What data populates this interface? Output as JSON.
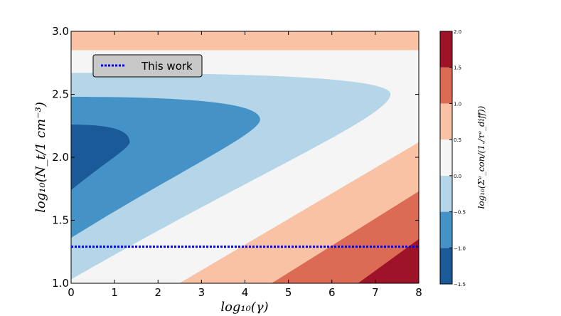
{
  "chart_data": {
    "type": "contourf",
    "xlabel": "log₁₀(γ)",
    "ylabel": "log₁₀(N_t/1 cm⁻³)",
    "xlim": [
      0,
      8
    ],
    "ylim": [
      1.0,
      3.0
    ],
    "x_ticks": [
      "0",
      "1",
      "2",
      "3",
      "4",
      "5",
      "6",
      "7",
      "8"
    ],
    "y_ticks": [
      "1.0",
      "1.5",
      "2.0",
      "2.5",
      "3.0"
    ],
    "colorbar": {
      "label": "log₁₀(Σᵉ_con/(1./τᵉ_diff))",
      "ticks": [
        "−1.5",
        "−1.0",
        "−0.5",
        "0.0",
        "0.5",
        "1.0",
        "1.5",
        "2.0"
      ],
      "levels": [
        -1.5,
        -1.0,
        -0.5,
        0.0,
        0.5,
        1.0,
        1.5,
        2.0
      ],
      "colors": [
        "#1b5a98",
        "#4593c6",
        "#b5d6e9",
        "#f5f5f5",
        "#f9c2a4",
        "#dc6b55",
        "#9e1327"
      ]
    },
    "legend": {
      "placement": "top-left",
      "entries": [
        {
          "label": "This work",
          "color": "#0000ff",
          "linestyle": "dotted"
        }
      ]
    },
    "this_work_line": {
      "y": 1.29
    },
    "contour_boundaries": {
      "level_-1.0": {
        "tip_x": 1.35,
        "tip_y": 2.12,
        "left_top_y": 2.26,
        "left_bottom_y": 1.74
      },
      "level_-0.5": {
        "tip_x": 4.35,
        "tip_y": 2.3,
        "left_top_y": 2.48,
        "left_bottom_y": 1.36
      },
      "level_0.0": {
        "tip_x": 7.35,
        "tip_y": 2.5,
        "left_top_y": 2.67,
        "left_bottom_y": 1.03
      },
      "level_0.5": {
        "upper_y": 2.85,
        "lower_from_x": 2.0,
        "lower_to": [
          8,
          2.12
        ]
      },
      "level_1.0": {
        "from_x": 4.15,
        "to": [
          8,
          1.73
        ]
      },
      "level_1.5": {
        "from_x": 6.2,
        "to": [
          8,
          1.35
        ]
      }
    }
  }
}
